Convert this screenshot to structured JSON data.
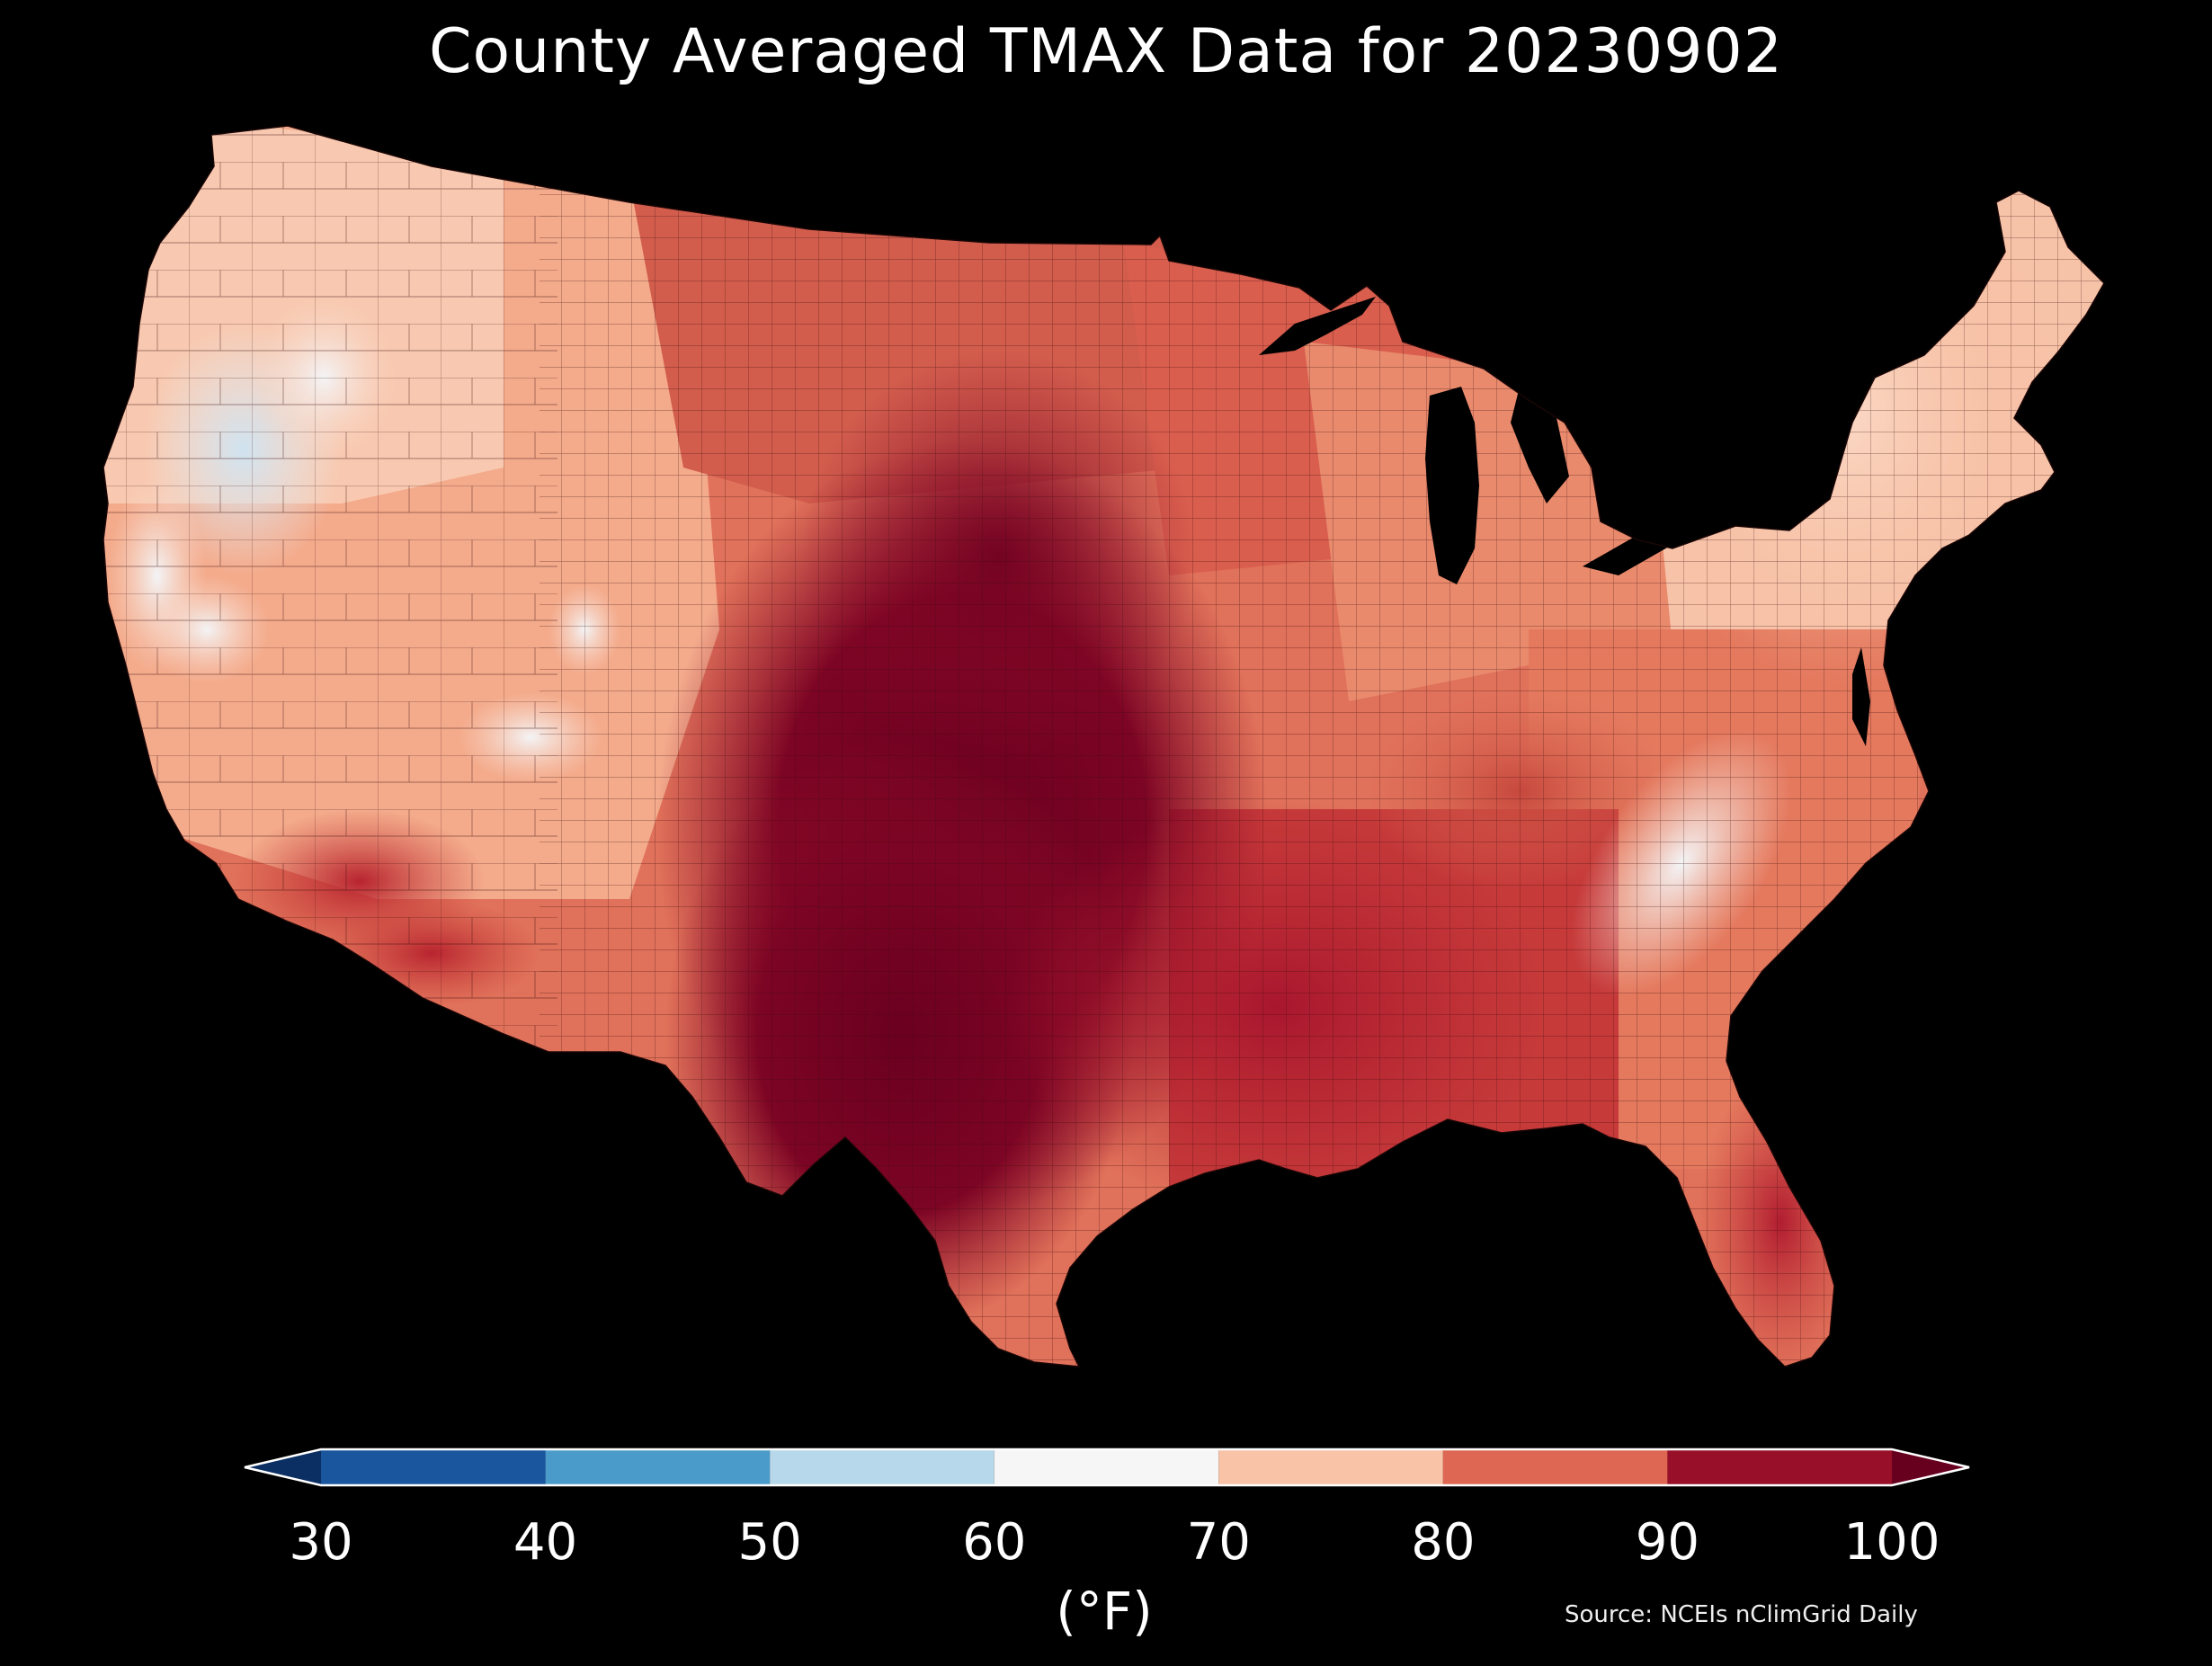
{
  "title": "County Averaged TMAX Data for 20230902",
  "colorbar": {
    "ticks": [
      "30",
      "40",
      "50",
      "60",
      "70",
      "80",
      "90",
      "100"
    ],
    "unit": "(°F)",
    "under_color": "#0b2f63",
    "over_color": "#67001f",
    "bins": [
      {
        "min": 30,
        "max": 40,
        "color": "#1a569e"
      },
      {
        "min": 40,
        "max": 50,
        "color": "#4a9bc9"
      },
      {
        "min": 50,
        "max": 60,
        "color": "#b7d8ea"
      },
      {
        "min": 60,
        "max": 70,
        "color": "#f6f6f6"
      },
      {
        "min": 70,
        "max": 80,
        "color": "#f9c3a7"
      },
      {
        "min": 80,
        "max": 90,
        "color": "#dd6753"
      },
      {
        "min": 90,
        "max": 100,
        "color": "#970f29"
      }
    ]
  },
  "source": "Source: NCEIs nClimGrid Daily",
  "map": {
    "region": "contiguous United States",
    "ocean_color": "#000000",
    "border_color": "#2a0a0a"
  }
}
